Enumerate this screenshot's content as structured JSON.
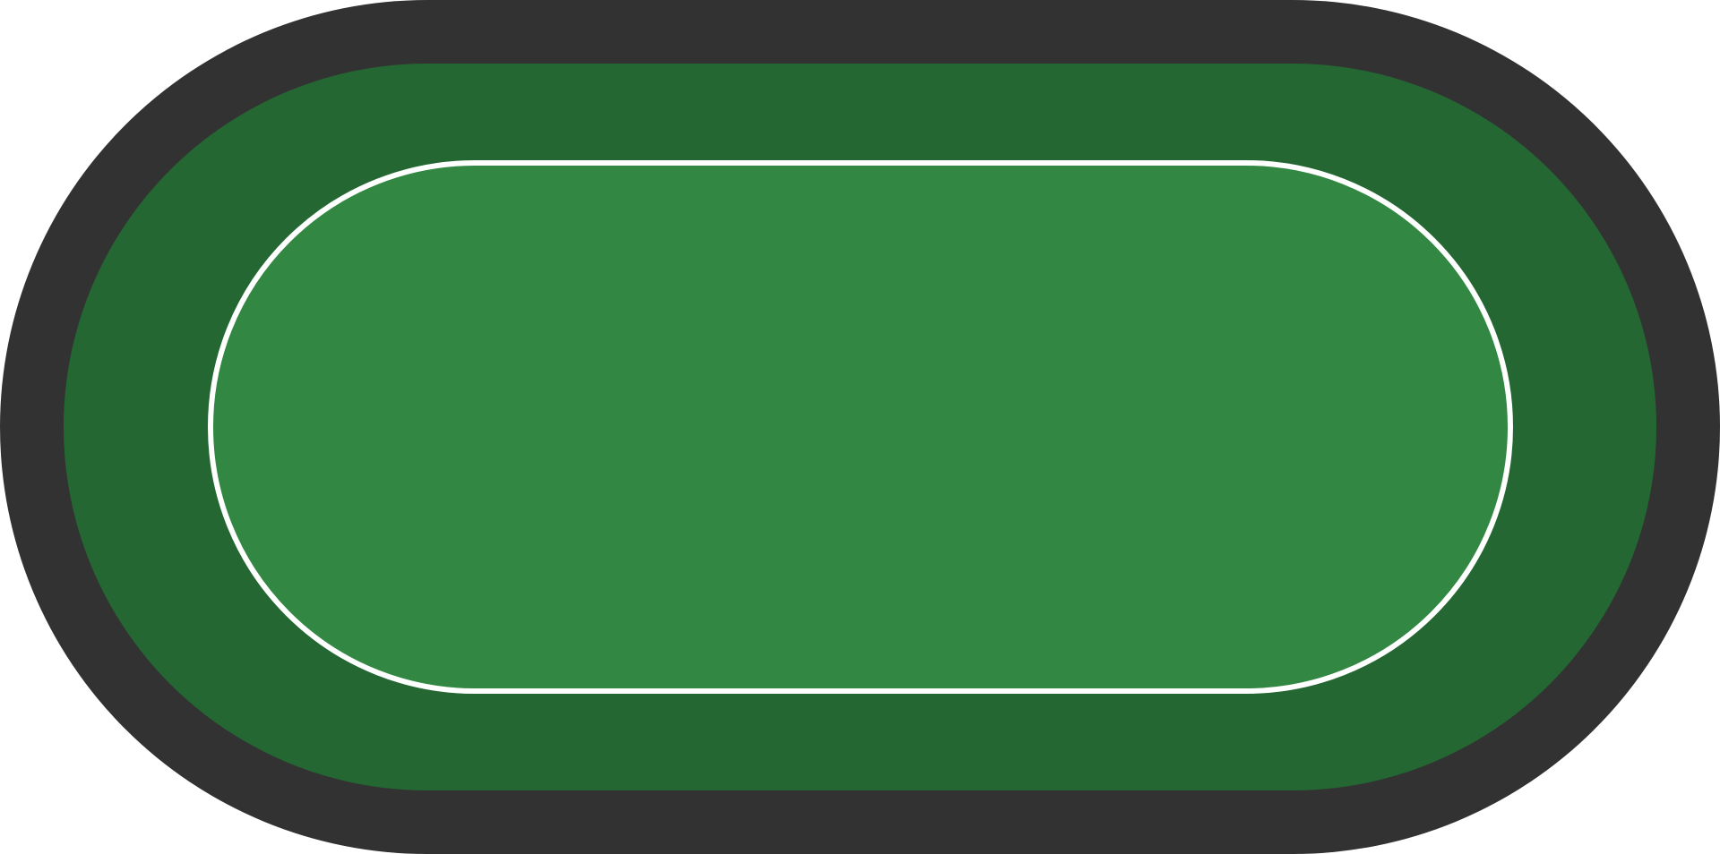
{
  "table": {
    "shape": "stadium",
    "colors": {
      "rail": "#323232",
      "outer_felt": "#246733",
      "inner_felt": "#328842",
      "betting_line": "#ffffff"
    }
  }
}
